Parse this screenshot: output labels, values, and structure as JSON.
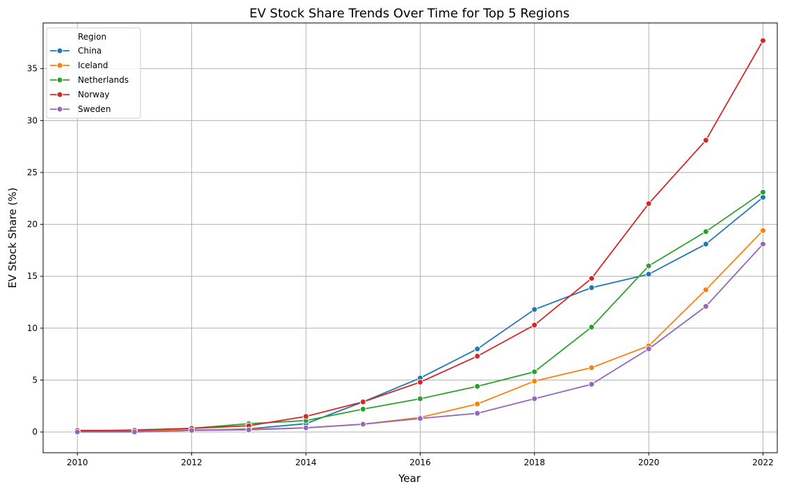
{
  "chart_data": {
    "type": "line",
    "title": "EV Stock Share Trends Over Time for Top 5 Regions",
    "xlabel": "Year",
    "ylabel": "EV Stock Share (%)",
    "x": [
      2010,
      2011,
      2012,
      2013,
      2014,
      2015,
      2016,
      2017,
      2018,
      2019,
      2020,
      2021,
      2022
    ],
    "xticks": [
      2010,
      2012,
      2014,
      2016,
      2018,
      2020,
      2022
    ],
    "yticks": [
      0,
      5,
      10,
      15,
      20,
      25,
      30,
      35
    ],
    "xlim": [
      2009.4,
      2022.25
    ],
    "ylim": [
      -2,
      39.4
    ],
    "grid": true,
    "markers": "circle",
    "legend": {
      "title": "Region",
      "placement": "top-left"
    },
    "series": [
      {
        "name": "China",
        "color": "#1f77b4",
        "values": [
          0.01,
          0.02,
          0.15,
          0.3,
          0.8,
          2.9,
          5.2,
          8.0,
          11.8,
          13.9,
          15.2,
          18.1,
          22.6
        ]
      },
      {
        "name": "Iceland",
        "color": "#ff7f0e",
        "values": [
          0.1,
          0.15,
          0.2,
          0.25,
          0.4,
          0.75,
          1.4,
          2.7,
          4.9,
          6.2,
          8.3,
          13.7,
          19.4
        ]
      },
      {
        "name": "Netherlands",
        "color": "#2ca02c",
        "values": [
          0.1,
          0.2,
          0.35,
          0.8,
          1.1,
          2.2,
          3.2,
          4.4,
          5.8,
          10.1,
          16.0,
          19.3,
          23.1
        ]
      },
      {
        "name": "Norway",
        "color": "#d62728",
        "values": [
          0.15,
          0.15,
          0.35,
          0.6,
          1.5,
          2.9,
          4.8,
          7.3,
          10.3,
          14.8,
          22.0,
          28.1,
          37.7
        ]
      },
      {
        "name": "Sweden",
        "color": "#9467bd",
        "values": [
          0.0,
          0.0,
          0.15,
          0.2,
          0.4,
          0.75,
          1.3,
          1.8,
          3.2,
          4.6,
          8.0,
          12.1,
          18.1
        ]
      }
    ]
  }
}
